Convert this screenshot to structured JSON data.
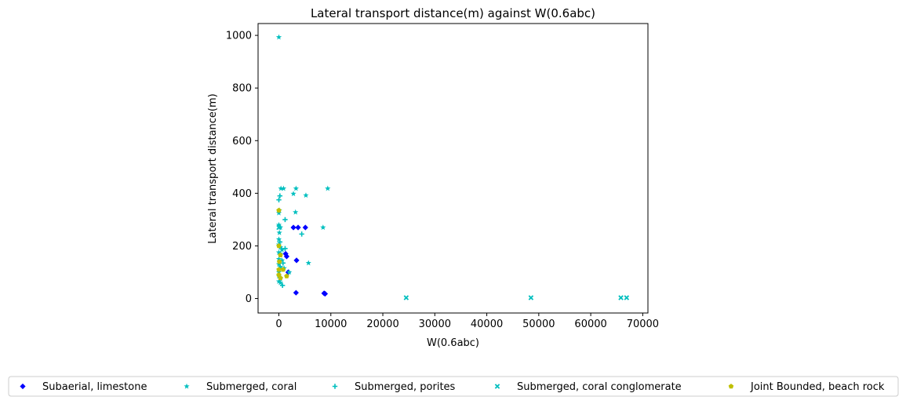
{
  "chart_data": {
    "type": "scatter",
    "title": "Lateral transport distance(m) against W(0.6abc)",
    "xlabel": "W(0.6abc)",
    "ylabel": "Lateral transport distance(m)",
    "xlim": [
      -4000,
      71000
    ],
    "ylim": [
      -55,
      1045
    ],
    "xticks": [
      0,
      10000,
      20000,
      30000,
      40000,
      50000,
      60000,
      70000
    ],
    "yticks": [
      0,
      200,
      400,
      600,
      800,
      1000
    ],
    "grid": false,
    "legend_placement": "bottom-center",
    "series": [
      {
        "name": "Subaerial, limestone",
        "marker": "diamond",
        "color": "#0000ff",
        "points": [
          [
            2800,
            270
          ],
          [
            3700,
            270
          ],
          [
            5100,
            270
          ],
          [
            1300,
            170
          ],
          [
            1500,
            160
          ],
          [
            3400,
            145
          ],
          [
            1800,
            100
          ],
          [
            3300,
            22
          ],
          [
            8700,
            20
          ],
          [
            8900,
            18
          ]
        ]
      },
      {
        "name": "Submerged, coral",
        "marker": "star",
        "color": "#00bfbf",
        "points": [
          [
            0,
            993
          ],
          [
            400,
            418
          ],
          [
            900,
            418
          ],
          [
            3300,
            418
          ],
          [
            9400,
            418
          ],
          [
            2800,
            398
          ],
          [
            5200,
            392
          ],
          [
            100,
            335
          ],
          [
            0,
            325
          ],
          [
            3200,
            328
          ],
          [
            0,
            280
          ],
          [
            300,
            270
          ],
          [
            8500,
            270
          ],
          [
            100,
            250
          ],
          [
            0,
            225
          ],
          [
            0,
            205
          ],
          [
            300,
            195
          ],
          [
            600,
            185
          ],
          [
            0,
            175
          ],
          [
            300,
            170
          ],
          [
            0,
            150
          ],
          [
            600,
            145
          ],
          [
            5700,
            135
          ],
          [
            0,
            130
          ],
          [
            300,
            120
          ],
          [
            1000,
            115
          ],
          [
            0,
            100
          ],
          [
            2000,
            100
          ],
          [
            0,
            85
          ],
          [
            300,
            75
          ],
          [
            0,
            65
          ],
          [
            300,
            60
          ]
        ]
      },
      {
        "name": "Submerged, porites",
        "marker": "plus",
        "color": "#00bfbf",
        "points": [
          [
            200,
            390
          ],
          [
            0,
            375
          ],
          [
            1200,
            300
          ],
          [
            4400,
            245
          ],
          [
            200,
            215
          ],
          [
            1200,
            190
          ],
          [
            800,
            135
          ],
          [
            700,
            50
          ]
        ]
      },
      {
        "name": "Submerged, coral conglomerate",
        "marker": "x",
        "color": "#00bfbf",
        "points": [
          [
            24500,
            3
          ],
          [
            48500,
            3
          ],
          [
            65800,
            3
          ],
          [
            66900,
            3
          ],
          [
            0,
            270
          ]
        ]
      },
      {
        "name": "Joint Bounded, beach rock",
        "marker": "pentagon",
        "color": "#bfbf00",
        "points": [
          [
            0,
            335
          ],
          [
            0,
            200
          ],
          [
            300,
            165
          ],
          [
            100,
            140
          ],
          [
            0,
            110
          ],
          [
            800,
            110
          ],
          [
            0,
            90
          ],
          [
            1500,
            85
          ],
          [
            300,
            78
          ]
        ]
      }
    ]
  }
}
